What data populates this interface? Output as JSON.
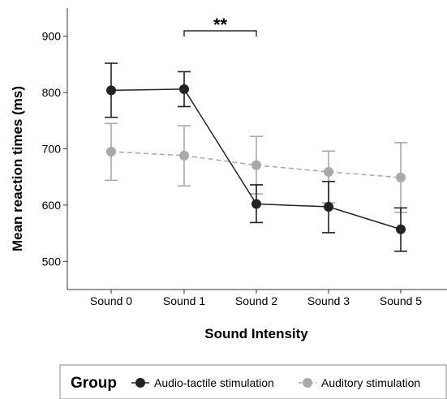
{
  "chart_data": {
    "type": "line",
    "xlabel": "Sound Intensity",
    "ylabel": "Mean reaction times (ms)",
    "categories": [
      "Sound 0",
      "Sound 1",
      "Sound 2",
      "Sound 3",
      "Sound 5"
    ],
    "ylim": [
      450,
      950
    ],
    "yticks": [
      500,
      600,
      700,
      800,
      900
    ],
    "grid": false,
    "series": [
      {
        "name": "Audio-tactile stimulation",
        "values": [
          804,
          806,
          602,
          597,
          557
        ],
        "err_low": [
          756,
          775,
          569,
          551,
          518
        ],
        "err_high": [
          852,
          837,
          636,
          642,
          595
        ],
        "color": "#222222",
        "line_style": "solid"
      },
      {
        "name": "Auditory stimulation",
        "values": [
          695,
          688,
          671,
          659,
          649
        ],
        "err_low": [
          644,
          634,
          620,
          604,
          587
        ],
        "err_high": [
          745,
          741,
          722,
          696,
          711
        ],
        "color": "#a9a9a9",
        "line_style": "dashed"
      }
    ],
    "annotations": [
      {
        "text": "**",
        "from_category": "Sound 1",
        "to_category": "Sound 2"
      }
    ],
    "legend": {
      "title": "Group",
      "position": "bottom"
    }
  }
}
